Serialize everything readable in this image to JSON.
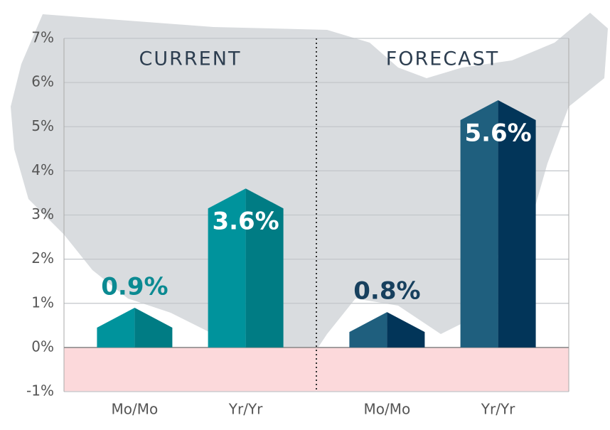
{
  "chart_data": {
    "type": "bar",
    "ylim": [
      -1,
      7
    ],
    "yticks": [
      {
        "value": -1,
        "label": "-1%"
      },
      {
        "value": 0,
        "label": "0%"
      },
      {
        "value": 1,
        "label": "1%"
      },
      {
        "value": 2,
        "label": "2%"
      },
      {
        "value": 3,
        "label": "3%"
      },
      {
        "value": 4,
        "label": "4%"
      },
      {
        "value": 5,
        "label": "5%"
      },
      {
        "value": 6,
        "label": "6%"
      },
      {
        "value": 7,
        "label": "7%"
      }
    ],
    "grid": true,
    "negative_band_color": "#fcd9db",
    "panels": [
      {
        "title": "CURRENT",
        "categories": [
          "Mo/Mo",
          "Yr/Yr"
        ],
        "values": [
          0.9,
          3.6
        ],
        "value_labels": [
          "0.9%",
          "3.6%"
        ],
        "color": "#00939c",
        "shade_color": "#007c84",
        "label_color": "#0b8a92"
      },
      {
        "title": "FORECAST",
        "categories": [
          "Mo/Mo",
          "Yr/Yr"
        ],
        "values": [
          0.8,
          5.6
        ],
        "value_labels": [
          "0.8%",
          "5.6%"
        ],
        "color": "#1f5f7e",
        "shade_color": "#023559",
        "label_color": "#17405e"
      }
    ]
  }
}
